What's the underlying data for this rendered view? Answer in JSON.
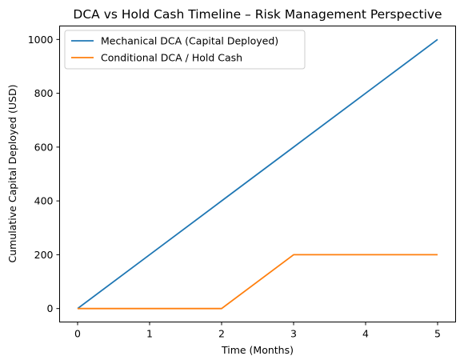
{
  "chart_data": {
    "type": "line",
    "title": "DCA vs Hold Cash Timeline – Risk Management Perspective",
    "xlabel": "Time (Months)",
    "ylabel": "Cumulative Capital Deployed (USD)",
    "x": [
      0,
      1,
      2,
      3,
      4,
      5
    ],
    "xlim": [
      -0.25,
      5.25
    ],
    "ylim": [
      -50,
      1050
    ],
    "xticks": [
      0,
      1,
      2,
      3,
      4,
      5
    ],
    "yticks": [
      0,
      200,
      400,
      600,
      800,
      1000
    ],
    "grid": false,
    "legend_position": "top-left",
    "series": [
      {
        "name": "Mechanical DCA (Capital Deployed)",
        "color": "#1f77b4",
        "values": [
          0,
          200,
          400,
          600,
          800,
          1000
        ]
      },
      {
        "name": "Conditional DCA / Hold Cash",
        "color": "#ff7f0e",
        "values": [
          0,
          0,
          0,
          200,
          200,
          200
        ]
      }
    ]
  }
}
